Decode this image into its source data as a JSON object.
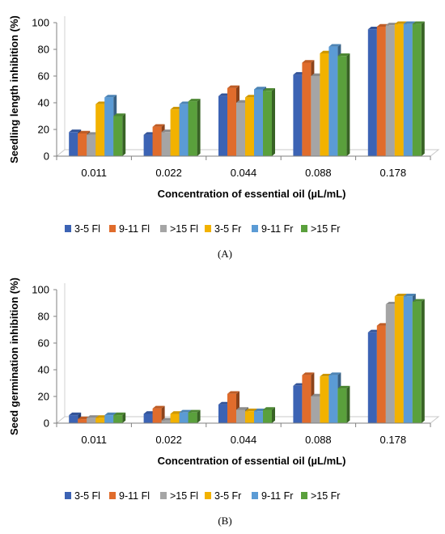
{
  "chart_data": [
    {
      "type": "bar",
      "panel_label": "(A)",
      "categories": [
        "0.011",
        "0.022",
        "0.044",
        "0.088",
        "0.178"
      ],
      "xlabel": "Concentration of essential oil (µL/mL)",
      "ylabel": "Seedling length inhibition (%)",
      "ylim": [
        0,
        100
      ],
      "yticks": [
        "0",
        "20",
        "40",
        "60",
        "80",
        "100"
      ],
      "grid": false,
      "legend_position": "bottom",
      "series": [
        {
          "name": "3-5 Fl",
          "color": "#3c63b4",
          "values": [
            18,
            16,
            45,
            61,
            95
          ]
        },
        {
          "name": "9-11 Fl",
          "color": "#e06c2c",
          "values": [
            17,
            22,
            51,
            70,
            97
          ]
        },
        {
          "name": ">15 Fl",
          "color": "#a5a5a5",
          "values": [
            16,
            18,
            40,
            60,
            98
          ]
        },
        {
          "name": "3-5 Fr",
          "color": "#f2b200",
          "values": [
            39,
            35,
            44,
            77,
            99
          ]
        },
        {
          "name": "9-11 Fr",
          "color": "#5b9bd5",
          "values": [
            44,
            39,
            50,
            82,
            99
          ]
        },
        {
          "name": ">15 Fr",
          "color": "#5aa03c",
          "values": [
            30,
            41,
            49,
            75,
            99
          ]
        }
      ]
    },
    {
      "type": "bar",
      "panel_label": "(B)",
      "categories": [
        "0.011",
        "0.022",
        "0.044",
        "0.088",
        "0.178"
      ],
      "xlabel": "Concentration of essential oil (µL/mL)",
      "ylabel": "Seed germination inhibition (%)",
      "ylim": [
        0,
        100
      ],
      "yticks": [
        "0",
        "20",
        "40",
        "60",
        "80",
        "100"
      ],
      "grid": false,
      "legend_position": "bottom",
      "series": [
        {
          "name": "3-5 Fl",
          "color": "#3c63b4",
          "values": [
            6,
            7,
            14,
            28,
            68
          ]
        },
        {
          "name": "9-11 Fl",
          "color": "#e06c2c",
          "values": [
            3,
            11,
            22,
            36,
            73
          ]
        },
        {
          "name": ">15 Fl",
          "color": "#a5a5a5",
          "values": [
            4,
            2,
            10,
            20,
            89
          ]
        },
        {
          "name": "3-5 Fr",
          "color": "#f2b200",
          "values": [
            4,
            7,
            9,
            35,
            95
          ]
        },
        {
          "name": "9-11 Fr",
          "color": "#5b9bd5",
          "values": [
            6,
            8,
            9,
            36,
            95
          ]
        },
        {
          "name": ">15 Fr",
          "color": "#5aa03c",
          "values": [
            6,
            8,
            10,
            26,
            91
          ]
        }
      ]
    }
  ]
}
